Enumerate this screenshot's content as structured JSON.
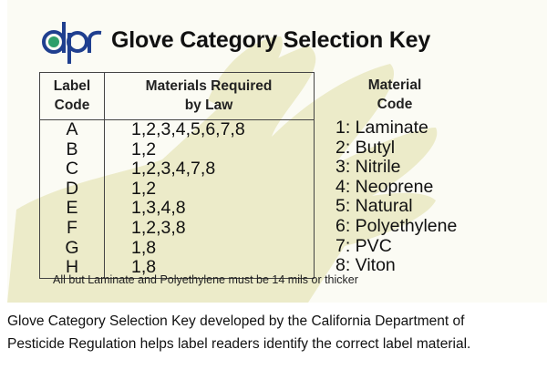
{
  "figure": {
    "logo_text": "dpr",
    "title": "Glove Category Selection Key",
    "table": {
      "headers": [
        "Label Code",
        "Materials Required by Law"
      ],
      "header_lines": [
        [
          "Label",
          "Code"
        ],
        [
          "Materials Required",
          "by Law"
        ]
      ],
      "rows": [
        {
          "code": "A",
          "materials": "1,2,3,4,5,6,7,8"
        },
        {
          "code": "B",
          "materials": "1,2"
        },
        {
          "code": "C",
          "materials": "1,2,3,4,7,8"
        },
        {
          "code": "D",
          "materials": "1,2"
        },
        {
          "code": "E",
          "materials": "1,3,4,8"
        },
        {
          "code": "F",
          "materials": "1,2,3,8"
        },
        {
          "code": "G",
          "materials": "1,8"
        },
        {
          "code": "H",
          "materials": "1,8"
        }
      ]
    },
    "material_code": {
      "header_lines": [
        "Material",
        "Code"
      ],
      "items": [
        "1: Laminate",
        "2: Butyl",
        "3: Nitrile",
        "4: Neoprene",
        "5: Natural",
        "6: Polyethylene",
        "7: PVC",
        "8: Viton"
      ]
    },
    "note": "All but Laminate and Polyethylene must be 14 mils or thicker",
    "colors": {
      "logo_blue": "#1f3f8f",
      "logo_green": "#2e9e6a",
      "glove": "#ecebc9"
    }
  },
  "caption": {
    "lines": [
      "Glove Category Selection Key developed by the California Department of",
      "Pesticide Regulation helps label readers identify the correct label material."
    ]
  }
}
